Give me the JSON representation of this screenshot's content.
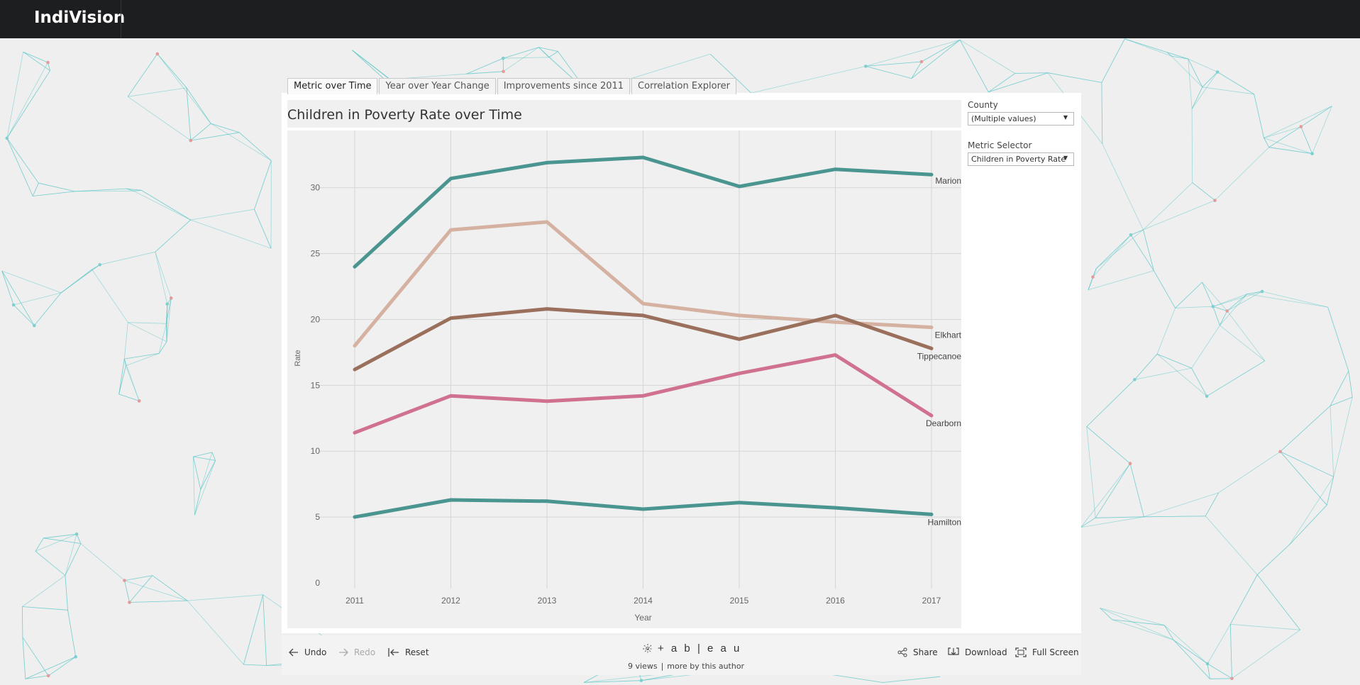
{
  "app": {
    "brand": "IndiVision"
  },
  "tabs": [
    "Metric over Time",
    "Year over Year Change",
    "Improvements since 2011",
    "Correlation Explorer"
  ],
  "filters": {
    "county": {
      "label": "County",
      "value": "(Multiple values)"
    },
    "metric": {
      "label": "Metric Selector",
      "value": "Children in Poverty Rate"
    }
  },
  "footer": {
    "undo": "Undo",
    "redo": "Redo",
    "reset": "Reset",
    "share": "Share",
    "download": "Download",
    "fullscreen": "Full Screen",
    "brand": "+ a b | e a u",
    "views": "9 views",
    "more": "more by this author"
  },
  "chart_data": {
    "type": "line",
    "title": "Children in Poverty Rate over Time",
    "xlabel": "Year",
    "ylabel": "Rate",
    "x": [
      2011,
      2012,
      2013,
      2014,
      2015,
      2016,
      2017
    ],
    "yticks": [
      0,
      5,
      10,
      15,
      20,
      25,
      30
    ],
    "ylim": [
      0,
      33
    ],
    "grid": true,
    "series": [
      {
        "name": "Marion",
        "color": "#4a9590",
        "values": [
          24.0,
          30.7,
          31.9,
          32.3,
          30.1,
          31.4,
          31.0
        ]
      },
      {
        "name": "Elkhart",
        "color": "#d5b1a1",
        "values": [
          18.0,
          26.8,
          27.4,
          21.2,
          20.3,
          19.8,
          19.4
        ]
      },
      {
        "name": "Tippecanoe",
        "color": "#9a6f5c",
        "values": [
          16.2,
          20.1,
          20.8,
          20.3,
          18.5,
          20.3,
          17.8
        ]
      },
      {
        "name": "Dearborn",
        "color": "#d0718f",
        "values": [
          11.4,
          14.2,
          13.8,
          14.2,
          15.9,
          17.3,
          12.7
        ]
      },
      {
        "name": "Hamilton",
        "color": "#4a9590",
        "values": [
          5.0,
          6.3,
          6.2,
          5.6,
          6.1,
          5.7,
          5.2
        ]
      }
    ]
  }
}
